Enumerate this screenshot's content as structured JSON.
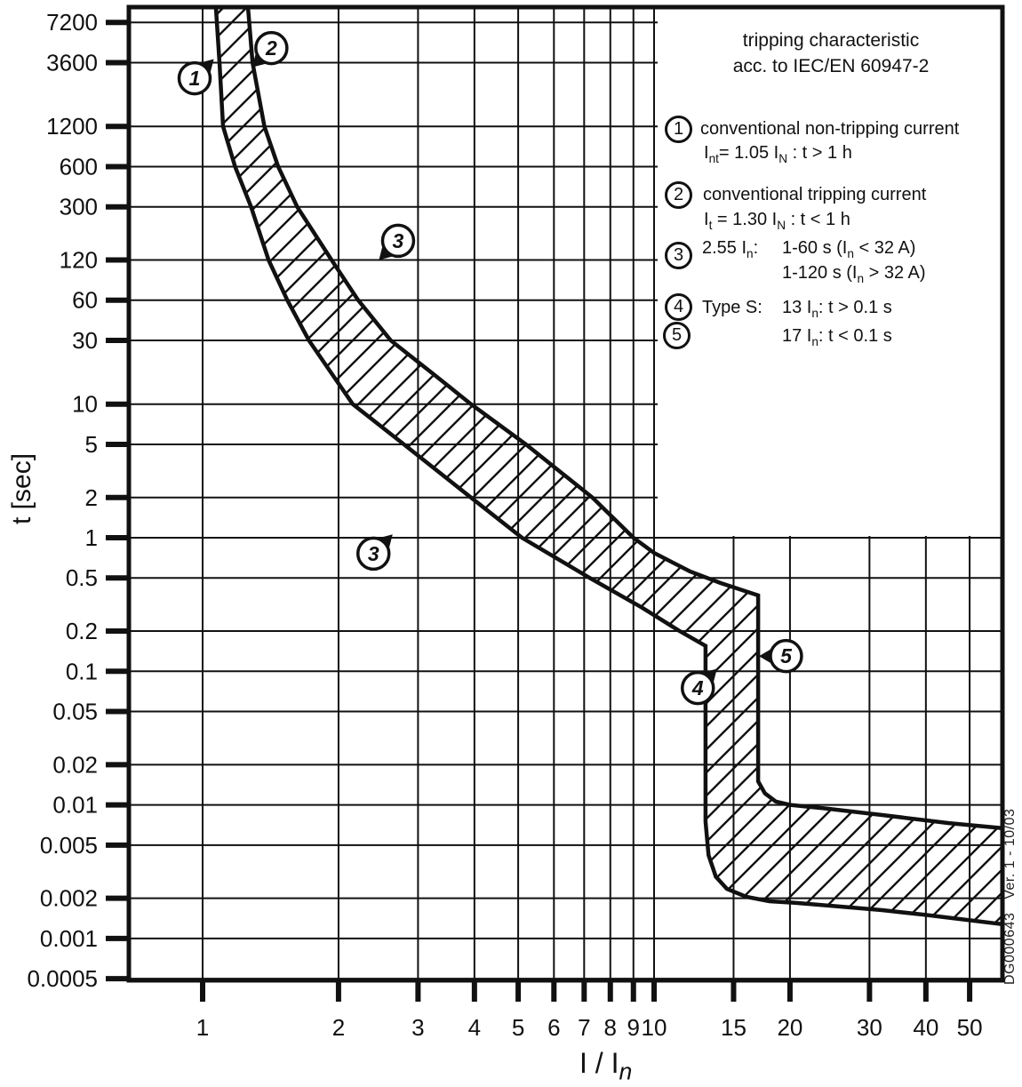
{
  "page": {
    "background": "#ffffff",
    "ink": "#111111"
  },
  "legend": {
    "title_line1": "tripping characteristic",
    "title_line2": "acc. to IEC/EN 60947-2",
    "items": [
      {
        "num": "1",
        "line1": [
          {
            "t": "conventional non-tripping current"
          }
        ],
        "line2": [
          {
            "t": "I"
          },
          {
            "s": "nt"
          },
          {
            "t": "= 1.05 I"
          },
          {
            "s": "N"
          },
          {
            "t": " : t > 1 h"
          }
        ]
      },
      {
        "num": "2",
        "line1": [
          {
            "t": "conventional tripping current"
          }
        ],
        "line2": [
          {
            "t": "I"
          },
          {
            "s": "t"
          },
          {
            "t": " = 1.30 I"
          },
          {
            "s": "N"
          },
          {
            "t": " : t < 1 h"
          }
        ]
      },
      {
        "num": "3",
        "label": [
          {
            "t": "2.55 I"
          },
          {
            "s": "n"
          },
          {
            "t": ":"
          }
        ],
        "line1": [
          {
            "t": "1-60 s (I"
          },
          {
            "s": "n"
          },
          {
            "t": " < 32 A)"
          }
        ],
        "line2": [
          {
            "t": "1-120 s (I"
          },
          {
            "s": "n"
          },
          {
            "t": " > 32 A)"
          }
        ]
      },
      {
        "num": "4",
        "label": [
          {
            "t": "Type S:"
          }
        ],
        "line1": [
          {
            "t": "13 I"
          },
          {
            "s": "n"
          },
          {
            "t": ": t > 0.1 s"
          }
        ]
      },
      {
        "num": "5",
        "line1": [
          {
            "t": "17 I"
          },
          {
            "s": "n"
          },
          {
            "t": ": t < 0.1 s"
          }
        ]
      }
    ]
  },
  "watermark": "DG000643   Ver. 1 - 10/03",
  "axis_titles": {
    "y": "t [sec]",
    "x_segments": [
      {
        "t": "I / I"
      },
      {
        "s": "n",
        "italic": true
      }
    ]
  },
  "chart_data": {
    "type": "area",
    "title": "tripping characteristic acc. to IEC/EN 60947-2",
    "x_scale": "log",
    "y_scale": "log",
    "xlabel": "I / In",
    "ylabel": "t [sec]",
    "x_range": [
      0.69,
      59
    ],
    "y_range": [
      0.000485,
      9400
    ],
    "grid": true,
    "x_ticks": [
      "1",
      "2",
      "3",
      "4",
      "5",
      "6",
      "7",
      "8",
      "9",
      "10",
      "15",
      "20",
      "30",
      "40",
      "50"
    ],
    "y_ticks": [
      "7200",
      "3600",
      "1200",
      "600",
      "300",
      "120",
      "60",
      "30",
      "10",
      "5",
      "2",
      "1",
      "0.5",
      "0.2",
      "0.1",
      "0.05",
      "0.02",
      "0.01",
      "0.005",
      "0.002",
      "0.001",
      "0.0005"
    ],
    "band": {
      "name": "tripping tolerance band (hatched)",
      "upper_boundary": [
        [
          1.26,
          9400
        ],
        [
          1.29,
          3600
        ],
        [
          1.37,
          1200
        ],
        [
          1.47,
          600
        ],
        [
          1.62,
          300
        ],
        [
          1.93,
          120
        ],
        [
          2.21,
          60
        ],
        [
          2.61,
          30
        ],
        [
          3.23,
          17
        ],
        [
          3.93,
          10
        ],
        [
          5.2,
          5
        ],
        [
          7.3,
          2
        ],
        [
          9.0,
          1
        ],
        [
          10.0,
          0.77
        ],
        [
          12.0,
          0.56
        ],
        [
          14.0,
          0.46
        ],
        [
          17,
          0.37
        ],
        [
          17,
          0.015
        ],
        [
          17.6,
          0.0122
        ],
        [
          18.6,
          0.0106
        ],
        [
          20,
          0.01
        ],
        [
          24,
          0.0094
        ],
        [
          32,
          0.0084
        ],
        [
          45,
          0.0073
        ],
        [
          59,
          0.0067
        ]
      ],
      "lower_boundary": [
        [
          1.07,
          9400
        ],
        [
          1.09,
          3600
        ],
        [
          1.11,
          1200
        ],
        [
          1.18,
          600
        ],
        [
          1.28,
          300
        ],
        [
          1.4,
          120
        ],
        [
          1.54,
          60
        ],
        [
          1.72,
          30
        ],
        [
          1.93,
          17
        ],
        [
          2.15,
          10
        ],
        [
          2.79,
          5
        ],
        [
          3.93,
          2
        ],
        [
          5.1,
          1
        ],
        [
          7.2,
          0.5
        ],
        [
          9.4,
          0.3
        ],
        [
          11.4,
          0.2
        ],
        [
          13,
          0.155
        ],
        [
          13,
          0.0075
        ],
        [
          13.2,
          0.0042
        ],
        [
          13.7,
          0.0029
        ],
        [
          14.5,
          0.00235
        ],
        [
          16,
          0.00205
        ],
        [
          18,
          0.0019
        ],
        [
          20.5,
          0.00185
        ],
        [
          25,
          0.00175
        ],
        [
          32,
          0.00163
        ],
        [
          40,
          0.0015
        ],
        [
          50,
          0.00137
        ],
        [
          59,
          0.00128
        ]
      ]
    },
    "markers": [
      {
        "label": "1",
        "x": 0.96,
        "t": 2750,
        "dir": "ne"
      },
      {
        "label": "2",
        "x": 1.42,
        "t": 4630,
        "dir": "sw"
      },
      {
        "label": "3",
        "x": 2.71,
        "t": 167,
        "dir": "sw"
      },
      {
        "label": "3",
        "x": 2.39,
        "t": 0.76,
        "dir": "ne"
      },
      {
        "label": "4",
        "x": 12.5,
        "t": 0.075,
        "dir": "ne"
      },
      {
        "label": "5",
        "x": 19.6,
        "t": 0.13,
        "dir": "w"
      }
    ],
    "key_values": {
      "conventional_non_tripping_current": "1.05 IN, t > 1 h",
      "conventional_tripping_current": "1.30 IN, t < 1 h",
      "thermal_test": "2.55 In: 1-60 s (In < 32 A), 1-120 s (In > 32 A)",
      "type_s_hold": "13 In: t > 0.1 s",
      "type_s_trip": "17 In: t < 0.1 s"
    }
  }
}
